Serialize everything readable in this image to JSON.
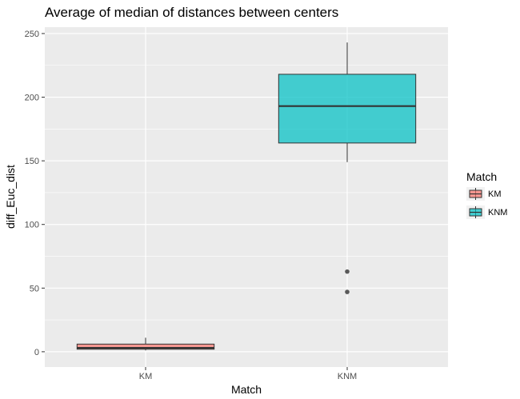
{
  "chart_data": {
    "type": "boxplot",
    "title": "Average of median of distances between centers",
    "xlabel": "Match",
    "ylabel": "diff_Euc_dist",
    "categories": [
      "KM",
      "KNM"
    ],
    "ylim": [
      -12,
      255
    ],
    "yticks": [
      0,
      50,
      100,
      150,
      200,
      250
    ],
    "grid": true,
    "legend": {
      "title": "Match",
      "position": "right",
      "entries": [
        "KM",
        "KNM"
      ]
    },
    "colors": {
      "KM": "#F8766D",
      "KNM": "#00BFC4",
      "panel": "#EBEBEB",
      "grid": "#FFFFFF",
      "outline": "#333333"
    },
    "boxes": [
      {
        "category": "KM",
        "whisker_low": 1,
        "q1": 2,
        "median": 3,
        "q3": 6,
        "whisker_high": 11,
        "outliers": []
      },
      {
        "category": "KNM",
        "whisker_low": 149,
        "q1": 164,
        "median": 193,
        "q3": 218,
        "whisker_high": 243,
        "outliers": [
          63,
          47
        ]
      }
    ]
  }
}
